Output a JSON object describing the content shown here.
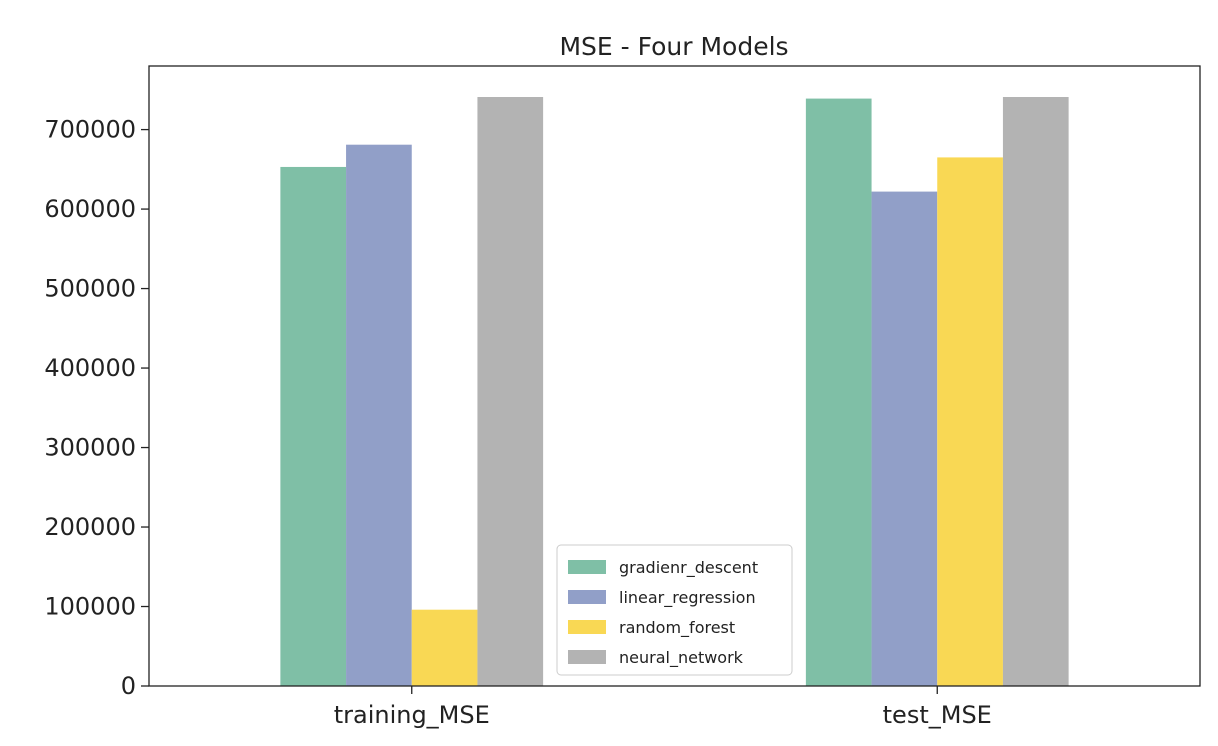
{
  "chart_data": {
    "type": "bar",
    "title": "MSE - Four Models",
    "xlabel": "",
    "ylabel": "",
    "categories": [
      "training_MSE",
      "test_MSE"
    ],
    "series": [
      {
        "name": "gradienr_descent",
        "color": "#7fbfa6",
        "values": [
          653000,
          739000
        ]
      },
      {
        "name": "linear_regression",
        "color": "#919fc8",
        "values": [
          681000,
          622000
        ]
      },
      {
        "name": "random_forest",
        "color": "#f9d854",
        "values": [
          96000,
          665000
        ]
      },
      {
        "name": "neural_network",
        "color": "#b3b3b3",
        "values": [
          741000,
          741000
        ]
      }
    ],
    "ylim": [
      0,
      780000
    ],
    "yticks": [
      0,
      100000,
      200000,
      300000,
      400000,
      500000,
      600000,
      700000
    ],
    "ytick_labels": [
      "0",
      "100000",
      "200000",
      "300000",
      "400000",
      "500000",
      "600000",
      "700000"
    ],
    "grid": false,
    "legend_position": "lower-center"
  }
}
